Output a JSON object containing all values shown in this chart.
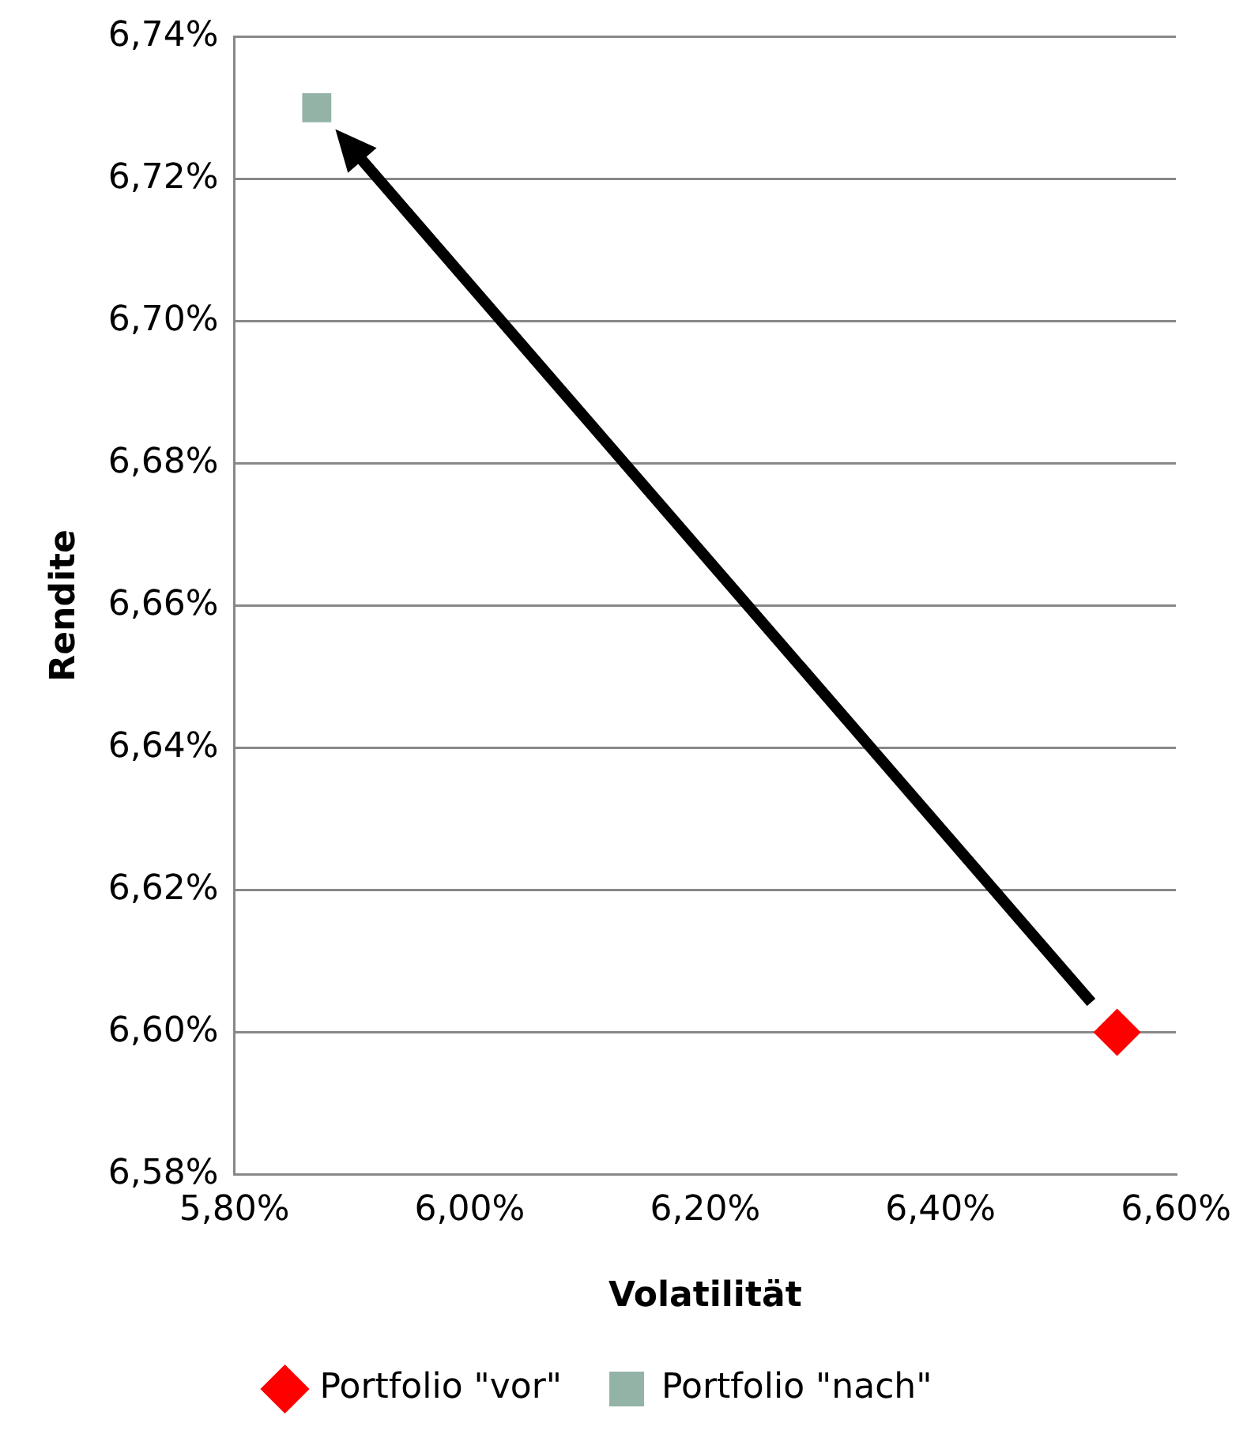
{
  "chart_data": {
    "type": "scatter",
    "xlabel": "Volatilität",
    "ylabel": "Rendite",
    "series": [
      {
        "name": "Portfolio \"vor\"",
        "color": "#ff0000",
        "marker": "diamond",
        "x": [
          6.55
        ],
        "values": [
          6.6
        ]
      },
      {
        "name": "Portfolio \"nach\"",
        "color": "#93b3a7",
        "marker": "square",
        "x": [
          5.87
        ],
        "values": [
          6.73
        ]
      }
    ],
    "xlim": [
      5.8,
      6.6
    ],
    "xticks": [
      {
        "value": 5.8,
        "label": "5,80%"
      },
      {
        "value": 6.0,
        "label": "6,00%"
      },
      {
        "value": 6.2,
        "label": "6,20%"
      },
      {
        "value": 6.4,
        "label": "6,40%"
      },
      {
        "value": 6.6,
        "label": "6,60%"
      }
    ],
    "ylim": [
      6.58,
      6.74
    ],
    "yticks": [
      {
        "value": 6.58,
        "label": "6,58%"
      },
      {
        "value": 6.6,
        "label": "6,60%"
      },
      {
        "value": 6.62,
        "label": "6,62%"
      },
      {
        "value": 6.64,
        "label": "6,64%"
      },
      {
        "value": 6.66,
        "label": "6,66%"
      },
      {
        "value": 6.68,
        "label": "6,68%"
      },
      {
        "value": 6.7,
        "label": "6,70%"
      },
      {
        "value": 6.72,
        "label": "6,72%"
      },
      {
        "value": 6.74,
        "label": "6,74%"
      }
    ],
    "grid": "y",
    "legend": "bottom"
  }
}
